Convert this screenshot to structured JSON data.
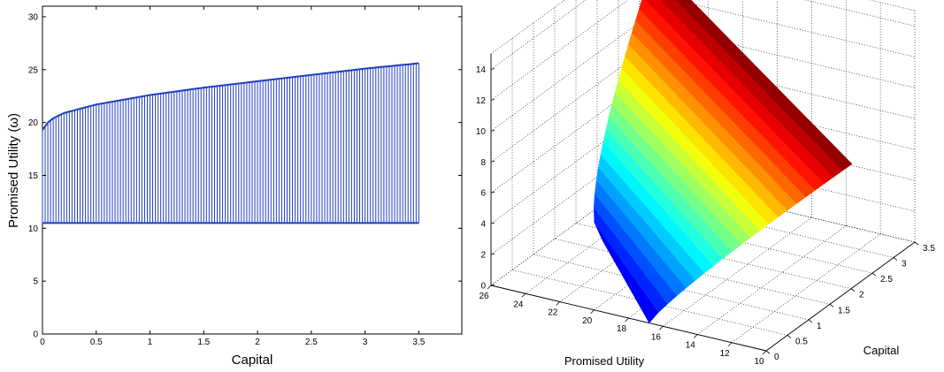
{
  "chart_data": [
    {
      "type": "area",
      "style": "vertical line segments between a lower bound and an upper bound curve",
      "xlabel": "Capital",
      "ylabel": "Promised Utility (ω)",
      "xlim": [
        0,
        3.9
      ],
      "ylim": [
        0,
        31
      ],
      "xticks": [
        "0",
        "0.5",
        "1",
        "1.5",
        "2",
        "2.5",
        "3",
        "3.5"
      ],
      "yticks": [
        "0",
        "5",
        "10",
        "15",
        "20",
        "25",
        "30"
      ],
      "x_range": [
        0,
        3.5
      ],
      "lower_bound": 10.5,
      "upper_bound": {
        "x": [
          0,
          0.05,
          0.1,
          0.2,
          0.5,
          1.0,
          1.5,
          2.0,
          2.5,
          3.0,
          3.5
        ],
        "y": [
          19.3,
          20.0,
          20.4,
          20.9,
          21.7,
          22.6,
          23.3,
          23.9,
          24.5,
          25.1,
          25.6
        ]
      },
      "segment_count": 140,
      "color": "#1f3fbf"
    },
    {
      "type": "surface",
      "xlabel": "Capital",
      "ylabel": "Promised Utility",
      "capital_ticks": [
        "0",
        "0.5",
        "1",
        "1.5",
        "2",
        "2.5",
        "3",
        "3.5"
      ],
      "utility_ticks": [
        "10",
        "12",
        "14",
        "16",
        "18",
        "20",
        "22",
        "24",
        "26"
      ],
      "z_ticks": [
        "0",
        "2",
        "4",
        "6",
        "8",
        "10",
        "12",
        "14"
      ],
      "zlim": [
        0,
        15
      ],
      "colormap": "jet",
      "grid": true
    }
  ]
}
